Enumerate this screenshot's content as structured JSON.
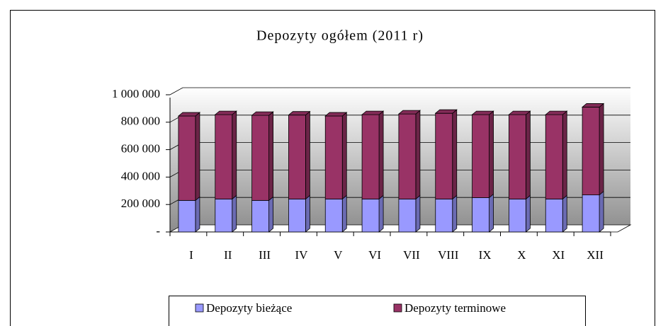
{
  "chart_data": {
    "type": "bar",
    "stacked": true,
    "title": "Depozyty ogółem (2011 r)",
    "categories": [
      "I",
      "II",
      "III",
      "IV",
      "V",
      "VI",
      "VII",
      "VIII",
      "IX",
      "X",
      "XI",
      "XII"
    ],
    "series": [
      {
        "name": "Depozyty bieżące",
        "color": "#9999ff",
        "values": [
          230000,
          240000,
          230000,
          240000,
          240000,
          240000,
          240000,
          240000,
          250000,
          240000,
          240000,
          270000
        ]
      },
      {
        "name": "Depozyty terminowe",
        "color": "#993366",
        "values": [
          615000,
          615000,
          620000,
          612000,
          605000,
          615000,
          620000,
          625000,
          605000,
          615000,
          615000,
          640000
        ]
      }
    ],
    "ylim": [
      0,
      1000000
    ],
    "yticks": [
      {
        "value": 0,
        "label": "-"
      },
      {
        "value": 200000,
        "label": "200 000"
      },
      {
        "value": 400000,
        "label": "400 000"
      },
      {
        "value": 600000,
        "label": "600 000"
      },
      {
        "value": 800000,
        "label": "800 000"
      },
      {
        "value": 1000000,
        "label": "1 000 000"
      }
    ],
    "grid": true,
    "legend": "bottom"
  }
}
